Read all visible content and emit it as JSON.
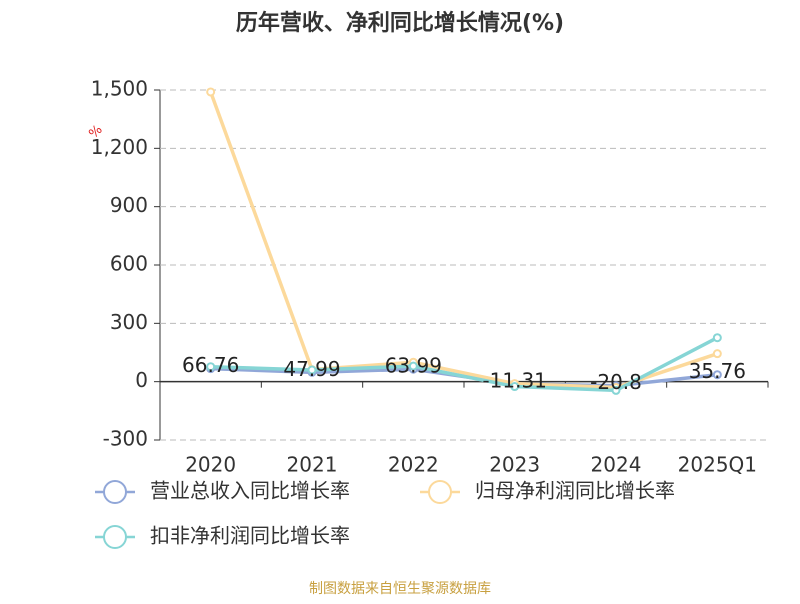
{
  "chart_data": {
    "type": "line",
    "title": "历年营收、净利同比增长情况(%)",
    "y_unit": "%",
    "categories": [
      "2020",
      "2021",
      "2022",
      "2023",
      "2024",
      "2025Q1"
    ],
    "series": [
      {
        "name": "营业总收入同比增长率",
        "color": "#91a7d8",
        "values": [
          66.76,
          47.99,
          63.99,
          -11.31,
          -20.8,
          35.76
        ],
        "show_labels": true
      },
      {
        "name": "归母净利润同比增长率",
        "color": "#fcd99b",
        "values": [
          1490,
          62,
          100,
          -10,
          -30,
          144
        ]
      },
      {
        "name": "扣非净利润同比增长率",
        "color": "#86d5d5",
        "values": [
          77,
          60,
          80,
          -25,
          -45,
          226
        ]
      }
    ],
    "ylim": [
      -300,
      1500
    ],
    "yticks": [
      -300,
      0,
      300,
      600,
      900,
      {
        "value": 1200,
        "label": "1,200"
      },
      {
        "value": 1500,
        "label": "1,500"
      }
    ],
    "grid": true,
    "source": "制图数据来自恒生聚源数据库"
  }
}
